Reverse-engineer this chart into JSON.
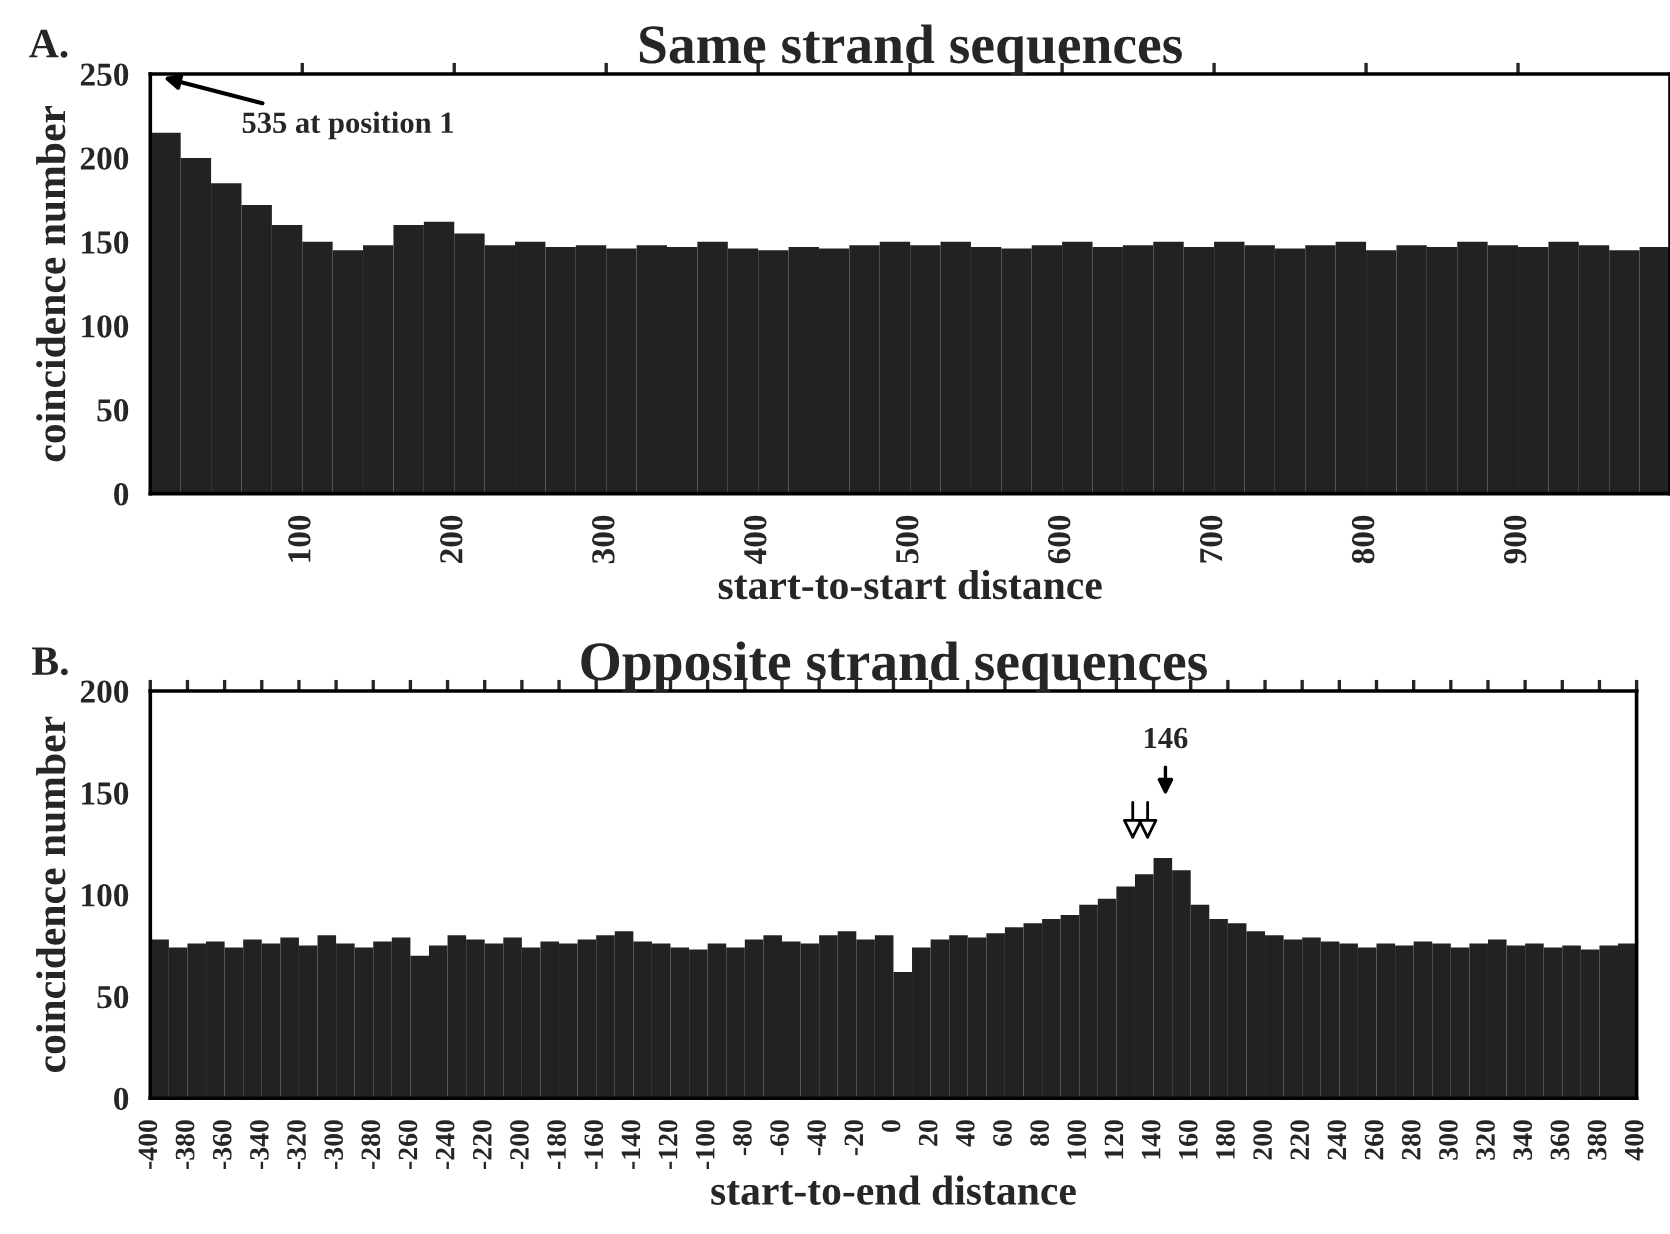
{
  "chart_data": [
    {
      "type": "histogram",
      "title": "Same strand sequences",
      "xlabel": "start-to-start distance",
      "ylabel": "coincidence number",
      "color": "#222222",
      "bins": [
        0,
        20,
        40,
        60,
        80,
        100,
        120,
        140,
        160,
        180,
        200,
        220,
        240,
        260,
        280,
        300,
        320,
        340,
        360,
        380,
        400,
        420,
        440,
        460,
        480,
        500,
        520,
        540,
        560,
        580,
        600,
        620,
        640,
        660,
        680,
        700,
        720,
        740,
        760,
        780,
        800,
        820,
        840,
        860,
        880,
        900,
        920,
        940,
        960,
        980,
        1000
      ],
      "values": [
        215,
        200,
        185,
        172,
        160,
        150,
        145,
        148,
        160,
        162,
        155,
        148,
        150,
        147,
        148,
        146,
        148,
        147,
        150,
        146,
        145,
        147,
        146,
        148,
        150,
        148,
        150,
        147,
        146,
        148,
        150,
        147,
        148,
        150,
        147,
        150,
        148,
        146,
        148,
        150,
        145,
        148,
        147,
        150,
        148,
        147,
        150,
        148,
        145,
        147
      ],
      "xlim": [
        0,
        1000
      ],
      "ylim": [
        0,
        250
      ],
      "yticks": [
        0,
        50,
        100,
        150,
        200,
        250
      ],
      "xticks": [
        100,
        200,
        300,
        400,
        500,
        600,
        700,
        800,
        900
      ],
      "annotations": [
        "A.",
        "535 at position 1"
      ]
    },
    {
      "type": "histogram",
      "title": "Opposite strand sequences",
      "xlabel": "start-to-end distance",
      "ylabel": "coincidence number",
      "color": "#222222",
      "bins": [
        -400,
        -390,
        -380,
        -370,
        -360,
        -350,
        -340,
        -330,
        -320,
        -310,
        -300,
        -290,
        -280,
        -270,
        -260,
        -250,
        -240,
        -230,
        -220,
        -210,
        -200,
        -190,
        -180,
        -170,
        -160,
        -150,
        -140,
        -130,
        -120,
        -110,
        -100,
        -90,
        -80,
        -70,
        -60,
        -50,
        -40,
        -30,
        -20,
        -10,
        0,
        10,
        20,
        30,
        40,
        50,
        60,
        70,
        80,
        90,
        100,
        110,
        120,
        130,
        140,
        150,
        160,
        170,
        180,
        190,
        200,
        210,
        220,
        230,
        240,
        250,
        260,
        270,
        280,
        290,
        300,
        310,
        320,
        330,
        340,
        350,
        360,
        370,
        380,
        390,
        400
      ],
      "values": [
        78,
        74,
        76,
        77,
        74,
        78,
        76,
        79,
        75,
        80,
        76,
        74,
        77,
        79,
        70,
        75,
        80,
        78,
        76,
        79,
        74,
        77,
        76,
        78,
        80,
        82,
        77,
        76,
        74,
        73,
        76,
        74,
        78,
        80,
        77,
        76,
        80,
        82,
        78,
        80,
        62,
        74,
        78,
        80,
        79,
        81,
        84,
        86,
        88,
        90,
        95,
        98,
        104,
        110,
        118,
        112,
        95,
        88,
        86,
        82,
        80,
        78,
        79,
        77,
        76,
        74,
        76,
        75,
        77,
        76,
        74,
        76,
        78,
        75,
        76,
        74,
        75,
        73,
        75,
        76
      ],
      "xlim": [
        -400,
        400
      ],
      "ylim": [
        0,
        200
      ],
      "yticks": [
        0,
        50,
        100,
        150,
        200
      ],
      "xticks": [
        -400,
        -380,
        -360,
        -340,
        -320,
        -300,
        -280,
        -260,
        -240,
        -220,
        -200,
        -180,
        -160,
        -140,
        -120,
        -100,
        -80,
        -60,
        -40,
        -20,
        0,
        20,
        40,
        60,
        80,
        100,
        120,
        140,
        160,
        180,
        200,
        220,
        240,
        260,
        280,
        300,
        320,
        340,
        360,
        380,
        400
      ],
      "annotations": [
        "B.",
        "146"
      ]
    }
  ]
}
